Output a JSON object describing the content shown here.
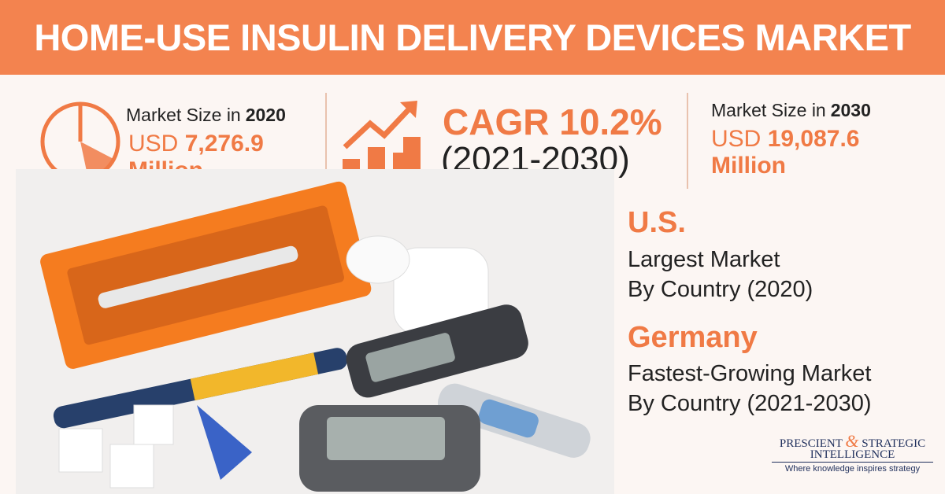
{
  "header": {
    "title": "HOME-USE INSULIN DELIVERY DEVICES MARKET"
  },
  "stats": [
    {
      "label": "Market Size in",
      "year": "2020",
      "currency": "USD",
      "value": "7,276.9",
      "unit": "Million"
    },
    {
      "label": "CAGR",
      "value": "10.2%",
      "period": "(2021-2030)"
    },
    {
      "label": "Market Size in",
      "year": "2030",
      "currency": "USD",
      "value": "19,087.6",
      "unit": "Million"
    }
  ],
  "highlights": [
    {
      "country": "U.S.",
      "line1": "Largest Market",
      "line2": "By Country (2020)"
    },
    {
      "country": "Germany",
      "line1": "Fastest-Growing Market",
      "line2": "By Country (2021-2030)"
    }
  ],
  "logo": {
    "word1": "PRESCIENT",
    "amp": "&",
    "word2": "STRATEGIC",
    "word3": "INTELLIGENCE",
    "tagline": "Where knowledge inspires strategy"
  }
}
